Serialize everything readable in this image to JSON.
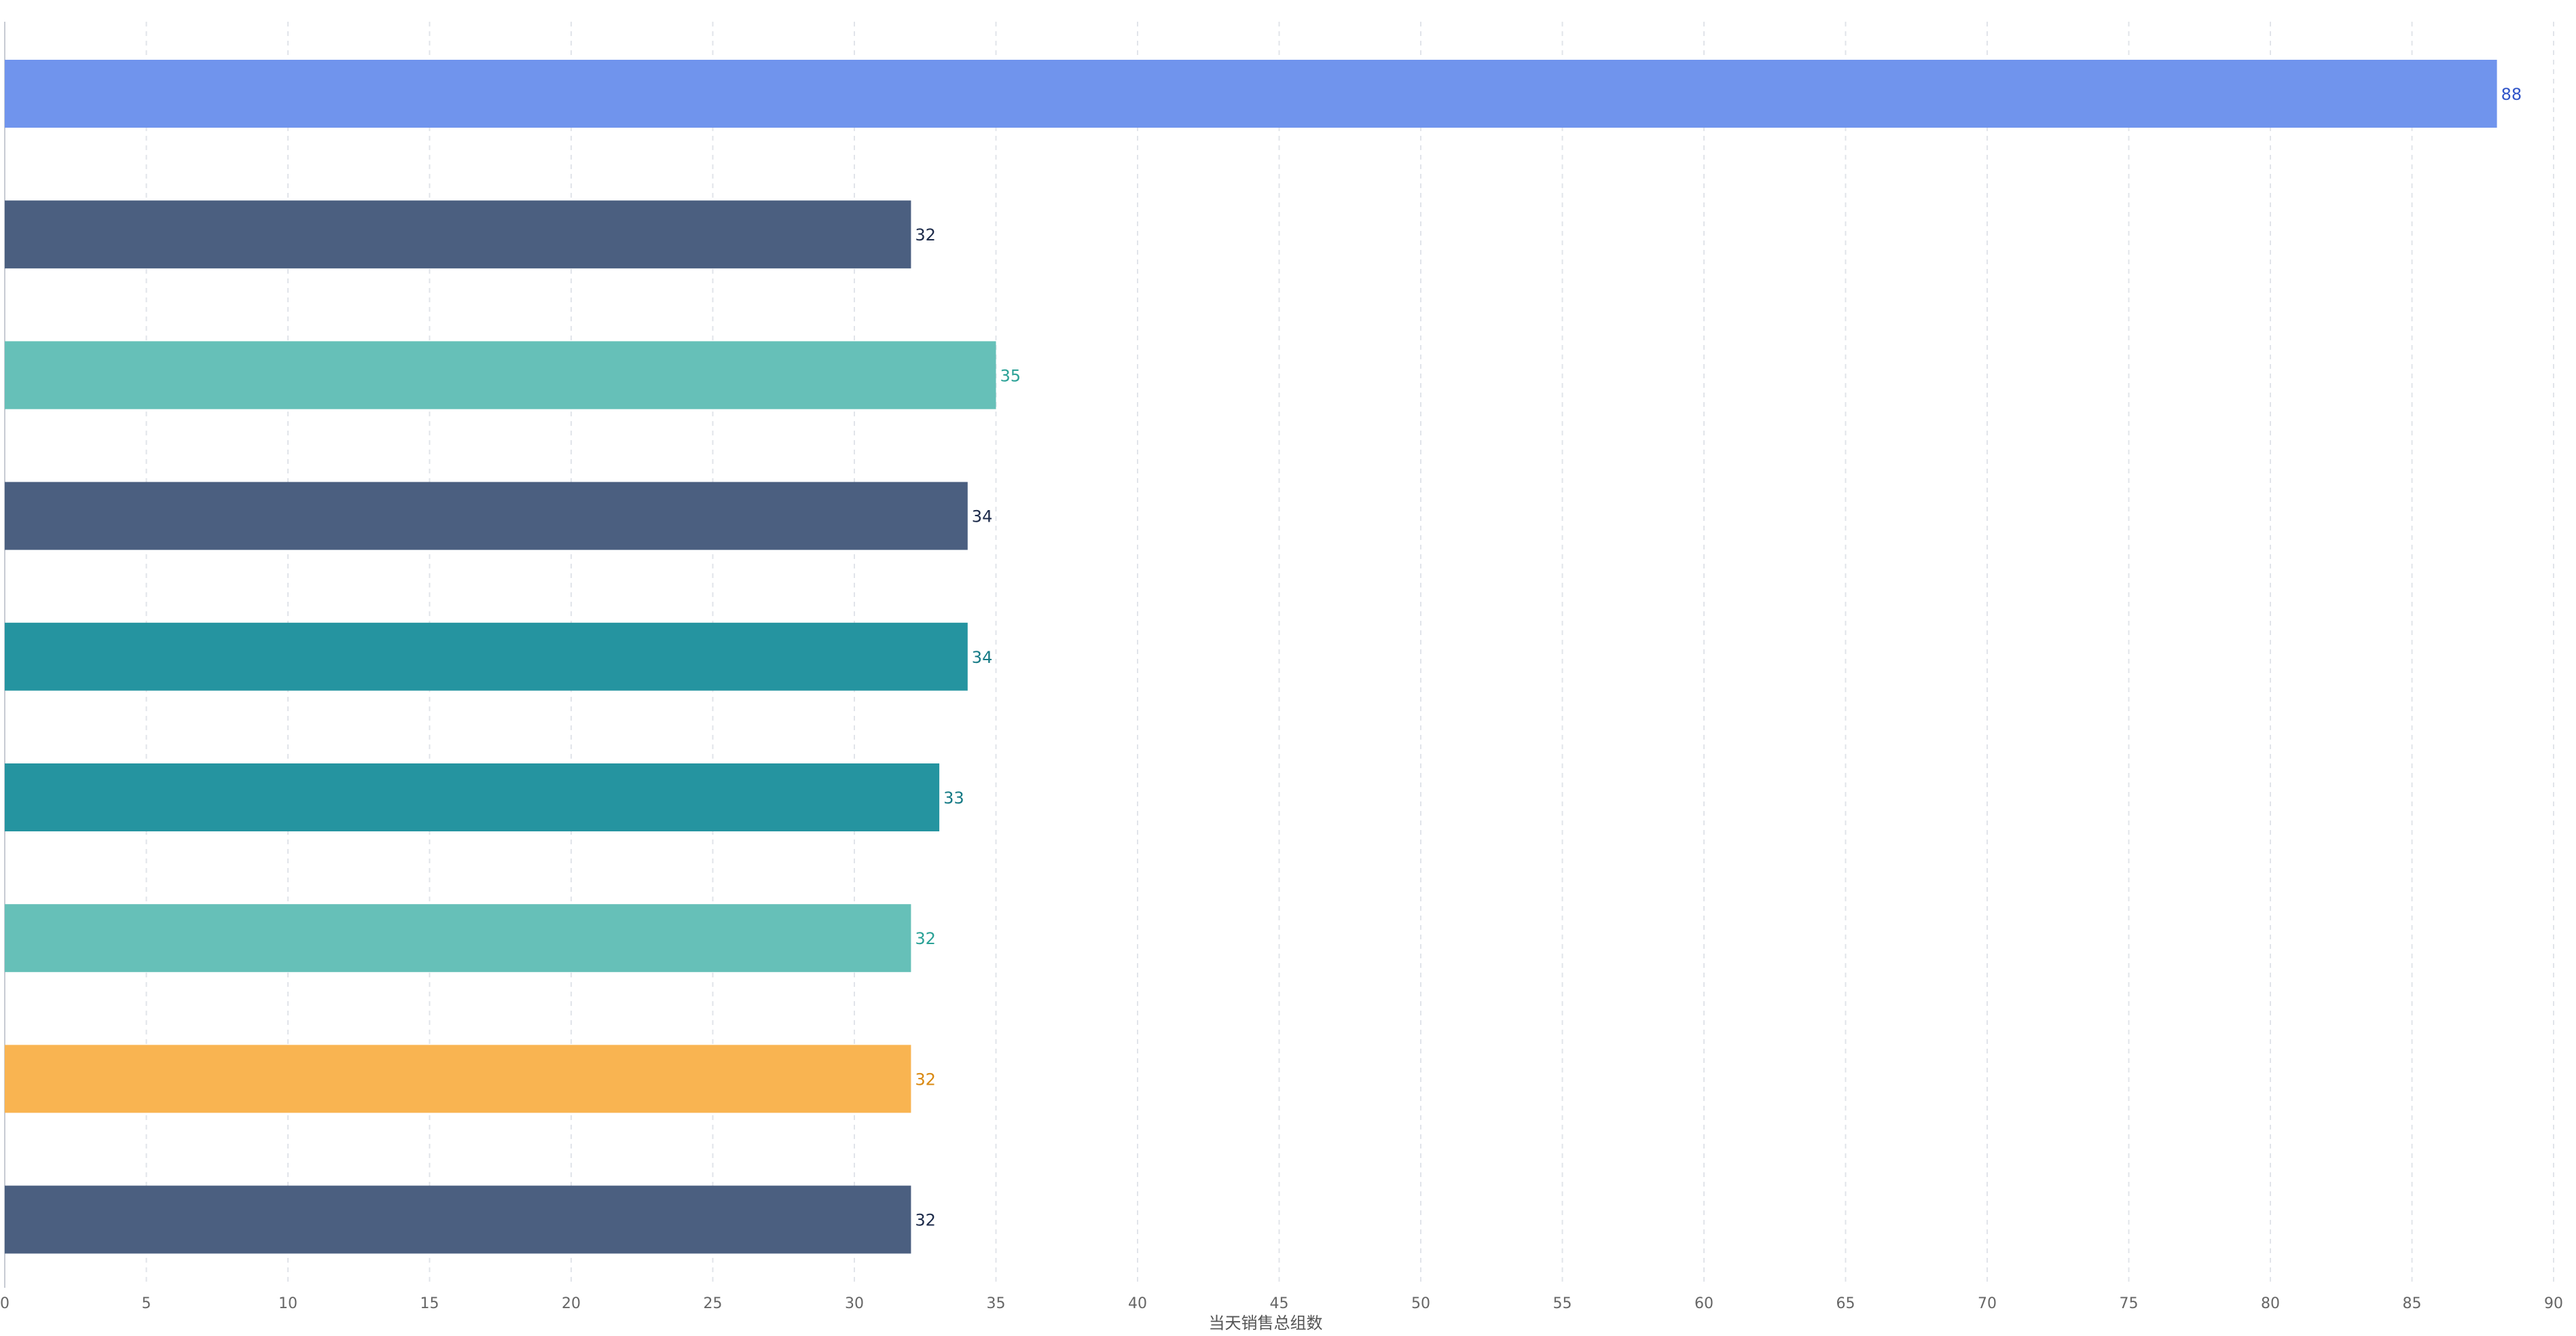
{
  "chart_data": {
    "type": "bar",
    "orientation": "horizontal",
    "title": "",
    "xlabel": "当天销售总组数",
    "ylabel": "",
    "xlim": [
      0,
      90
    ],
    "x_tick_step": 5,
    "x_ticks": [
      "0",
      "5",
      "10",
      "15",
      "20",
      "25",
      "30",
      "35",
      "40",
      "45",
      "50",
      "55",
      "60",
      "65",
      "70",
      "75",
      "80",
      "85",
      "90"
    ],
    "grid": "vertical dashed",
    "legend": "none",
    "categories": [
      "",
      "",
      "",
      "",
      "",
      "",
      "",
      "",
      ""
    ],
    "values": [
      88,
      32,
      35,
      34,
      34,
      33,
      32,
      32,
      32
    ],
    "bar_colors": [
      "#7094ed",
      "#4b5f80",
      "#66c0b8",
      "#4b5f80",
      "#2594a0",
      "#2594a0",
      "#66c0b8",
      "#f9b451",
      "#4b5f80"
    ],
    "label_colors": [
      "#2f54c8",
      "#1c2a49",
      "#2aa196",
      "#1c2a49",
      "#157a85",
      "#157a85",
      "#2aa196",
      "#d9880f",
      "#1c2a49"
    ]
  }
}
